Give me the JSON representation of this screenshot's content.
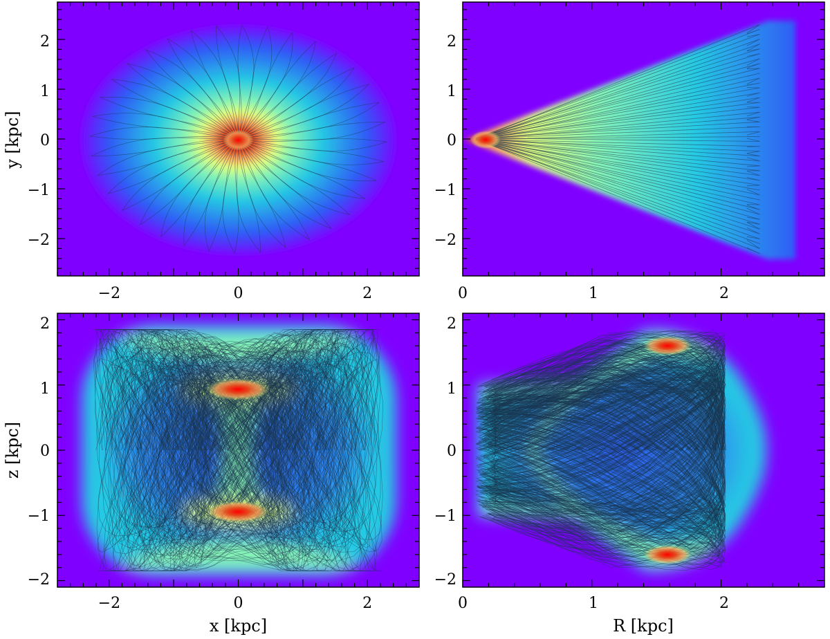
{
  "chart_data": [
    {
      "panel": "top-left",
      "type": "heatmap",
      "title": "",
      "xlabel": "",
      "ylabel": "y [kpc]",
      "xlim": [
        -2.8,
        2.8
      ],
      "ylim": [
        -2.75,
        2.75
      ],
      "xticks": [
        -2,
        -1,
        0,
        1,
        2
      ],
      "xtick_labels": [
        "−2",
        "",
        "0",
        "",
        "2"
      ],
      "yticks": [
        -2,
        -1,
        0,
        1,
        2
      ],
      "ytick_labels": [
        "−2",
        "−1",
        "0",
        "1",
        "2"
      ],
      "show_xtick_labels": true,
      "show_ytick_labels": true,
      "density": {
        "shape": "face-on disc",
        "outer_radius_kpc": 2.3,
        "peak_at_kpc": [
          0,
          0
        ]
      },
      "orbits": {
        "pattern": "rosette",
        "petals": 36,
        "r_min_kpc": 0.1,
        "r_max_kpc": 2.3
      },
      "colormap": [
        "#8000ff",
        "#2f5cf6",
        "#26c9e3",
        "#87f3b5",
        "#e0ff80",
        "#ffa85c",
        "#e34a1e",
        "#ff0000"
      ]
    },
    {
      "panel": "top-right",
      "type": "heatmap",
      "title": "",
      "xlabel": "",
      "ylabel": "",
      "xlim": [
        0,
        2.8
      ],
      "ylim": [
        -2.75,
        2.75
      ],
      "xticks": [
        0,
        1,
        2
      ],
      "xtick_labels": [
        "0",
        "1",
        "2"
      ],
      "yticks": [
        -2,
        -1,
        0,
        1,
        2
      ],
      "ytick_labels": [
        "−2",
        "−1",
        "0",
        "1",
        "2"
      ],
      "show_xtick_labels": true,
      "show_ytick_labels": true,
      "density": {
        "shape": "wedge",
        "apex_kpc": [
          0.1,
          0
        ],
        "end_R_kpc": 2.3,
        "half_height_at_end_kpc": 2.3,
        "peak_at_kpc": [
          0.18,
          0
        ]
      },
      "orbits": {
        "pattern": "radial fan",
        "count": 48
      }
    },
    {
      "panel": "bottom-left",
      "type": "heatmap",
      "title": "",
      "xlabel": "x [kpc]",
      "ylabel": "z [kpc]",
      "xlim": [
        -2.8,
        2.8
      ],
      "ylim": [
        -2.1,
        2.1
      ],
      "xticks": [
        -2,
        -1,
        0,
        1,
        2
      ],
      "xtick_labels": [
        "−2",
        "",
        "0",
        "",
        "2"
      ],
      "yticks": [
        -2,
        -1,
        0,
        1,
        2
      ],
      "ytick_labels": [
        "−2",
        "−1",
        "0",
        "1",
        "2"
      ],
      "show_xtick_labels": true,
      "show_ytick_labels": true,
      "density": {
        "shape": "hourglass box",
        "half_width_kpc": 2.3,
        "half_height_kpc": 1.85,
        "peaks_at_kpc": [
          [
            0,
            0.95
          ],
          [
            0,
            -0.95
          ]
        ]
      },
      "orbits": {
        "pattern": "box/hourglass",
        "count": 260
      }
    },
    {
      "panel": "bottom-right",
      "type": "heatmap",
      "title": "",
      "xlabel": "R [kpc]",
      "ylabel": "",
      "xlim": [
        0,
        2.8
      ],
      "ylim": [
        -2.1,
        2.1
      ],
      "xticks": [
        0,
        1,
        2
      ],
      "xtick_labels": [
        "0",
        "1",
        "2"
      ],
      "yticks": [
        -2,
        -1,
        0,
        1,
        2
      ],
      "ytick_labels": [
        "−2",
        "−1",
        "0",
        "1",
        "2"
      ],
      "show_xtick_labels": true,
      "show_ytick_labels": true,
      "density": {
        "shape": "meridional orbit region",
        "R_range_kpc": [
          0.1,
          2.3
        ],
        "z_range_kpc": [
          -1.85,
          1.85
        ],
        "peaks_at_kpc": [
          [
            1.6,
            1.6
          ],
          [
            1.6,
            -1.6
          ]
        ]
      },
      "orbits": {
        "pattern": "meridional loops",
        "count": 230
      }
    }
  ]
}
